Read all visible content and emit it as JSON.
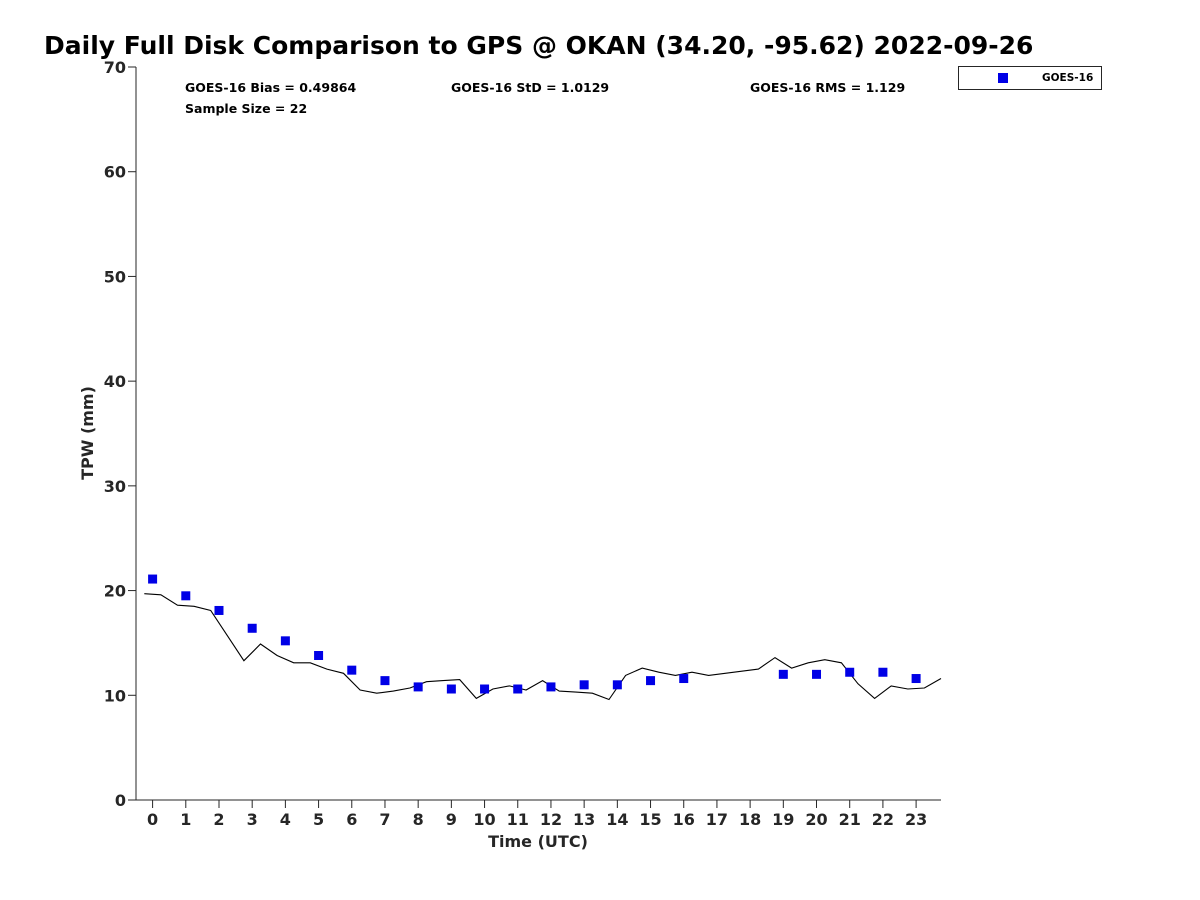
{
  "chart_data": {
    "type": "scatter",
    "title": "Daily Full Disk Comparison to GPS @ OKAN (34.20, -95.62) 2022-09-26",
    "xlabel": "Time (UTC)",
    "ylabel": "TPW (mm)",
    "xlim": [
      -0.5,
      23.75
    ],
    "ylim": [
      0,
      70
    ],
    "xticks": [
      0,
      1,
      2,
      3,
      4,
      5,
      6,
      7,
      8,
      9,
      10,
      11,
      12,
      13,
      14,
      15,
      16,
      17,
      18,
      19,
      20,
      21,
      22,
      23
    ],
    "yticks": [
      0,
      10,
      20,
      30,
      40,
      50,
      60,
      70
    ],
    "grid": false,
    "legend_position": "top-right",
    "stats": {
      "bias": "GOES-16 Bias = 0.49864",
      "std": "GOES-16 StD = 1.0129",
      "rms": "GOES-16 RMS = 1.129",
      "sample_size": "Sample Size = 22"
    },
    "series": [
      {
        "name": "GOES-16",
        "kind": "scatter",
        "marker": "square",
        "color": "#0000e6",
        "x": [
          0,
          1,
          2,
          3,
          4,
          5,
          6,
          7,
          8,
          9,
          10,
          11,
          12,
          13,
          14,
          15,
          16,
          19,
          20,
          21,
          22,
          23
        ],
        "y": [
          21.1,
          19.5,
          18.1,
          16.4,
          15.2,
          13.8,
          12.4,
          11.4,
          10.8,
          10.6,
          10.6,
          10.6,
          10.8,
          11.0,
          11.0,
          11.4,
          11.6,
          12.0,
          12.0,
          12.2,
          12.2,
          11.6
        ]
      },
      {
        "kind": "line",
        "color": "#000000",
        "x": [
          -0.25,
          0.25,
          0.75,
          1.25,
          1.75,
          2.25,
          2.75,
          3.25,
          3.75,
          4.25,
          4.75,
          5.25,
          5.75,
          6.25,
          6.75,
          7.25,
          7.75,
          8.25,
          8.75,
          9.25,
          9.75,
          10.25,
          10.75,
          11.25,
          11.75,
          12.25,
          12.75,
          13.25,
          13.75,
          14.25,
          14.75,
          15.25,
          15.75,
          16.25,
          16.75,
          17.25,
          17.75,
          18.25,
          18.75,
          19.25,
          19.75,
          20.25,
          20.75,
          21.25,
          21.75,
          22.25,
          22.75,
          23.25,
          23.75
        ],
        "y": [
          19.7,
          19.6,
          18.6,
          18.5,
          18.1,
          15.7,
          13.3,
          14.9,
          13.8,
          13.1,
          13.1,
          12.5,
          12.1,
          10.5,
          10.2,
          10.4,
          10.7,
          11.3,
          11.4,
          11.5,
          9.7,
          10.6,
          10.9,
          10.5,
          11.4,
          10.4,
          10.3,
          10.2,
          9.6,
          11.9,
          12.6,
          12.2,
          11.9,
          12.2,
          11.9,
          12.1,
          12.3,
          12.5,
          13.6,
          12.6,
          13.1,
          13.4,
          13.1,
          11.1,
          9.7,
          10.9,
          10.6,
          10.7,
          11.6
        ]
      }
    ]
  }
}
